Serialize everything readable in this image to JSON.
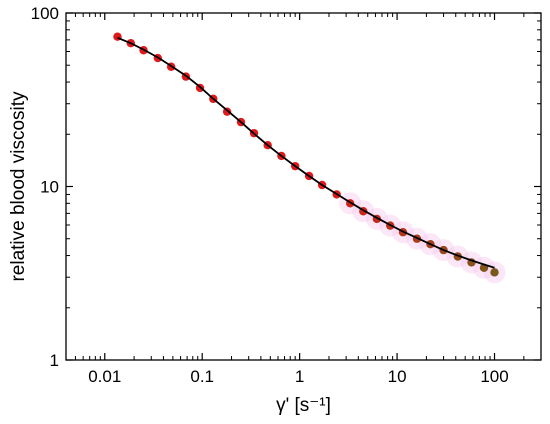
{
  "chart_data": {
    "type": "scatter",
    "title": "",
    "xlabel": "γ' [s⁻¹]",
    "ylabel": "relative blood viscosity",
    "x_scale": "log",
    "y_scale": "log",
    "xlim": [
      0.004,
      300
    ],
    "ylim": [
      1,
      100
    ],
    "x_ticks": [
      {
        "value": 0.01,
        "label": "0.01"
      },
      {
        "value": 0.1,
        "label": "0.1"
      },
      {
        "value": 1,
        "label": "1"
      },
      {
        "value": 10,
        "label": "10"
      },
      {
        "value": 100,
        "label": "100"
      }
    ],
    "y_ticks": [
      {
        "value": 1,
        "label": "1"
      },
      {
        "value": 10,
        "label": "10"
      },
      {
        "value": 100,
        "label": "100"
      }
    ],
    "grid": false,
    "legend": "none",
    "colors": {
      "points_start": "#e01a1a",
      "points_end": "#7a5a1a",
      "fit_line": "#000000",
      "axis": "#000000"
    },
    "series": [
      {
        "type": "scatter",
        "x": [
          0.0135,
          0.0185,
          0.025,
          0.035,
          0.048,
          0.068,
          0.095,
          0.13,
          0.18,
          0.25,
          0.34,
          0.47,
          0.65,
          0.9,
          1.25,
          1.7,
          2.4,
          3.3,
          4.5,
          6.2,
          8.5,
          11.5,
          16,
          22,
          30,
          42,
          58,
          78,
          100
        ],
        "y": [
          73,
          67,
          61,
          55,
          49,
          43,
          37,
          32,
          27,
          23.5,
          20.3,
          17.3,
          15,
          13.1,
          11.5,
          10.2,
          9.0,
          8.0,
          7.2,
          6.5,
          5.95,
          5.45,
          5.0,
          4.65,
          4.3,
          3.95,
          3.65,
          3.4,
          3.2
        ]
      },
      {
        "type": "line",
        "x": [
          0.0135,
          0.0185,
          0.025,
          0.035,
          0.048,
          0.068,
          0.095,
          0.13,
          0.18,
          0.25,
          0.34,
          0.47,
          0.65,
          0.9,
          1.25,
          1.7,
          2.4,
          3.3,
          4.5,
          6.2,
          8.5,
          11.5,
          16,
          22,
          30,
          42,
          58,
          78,
          100
        ],
        "y": [
          72,
          67,
          61.5,
          55.5,
          49.5,
          43.5,
          37.5,
          32,
          27.5,
          23.5,
          20.2,
          17.3,
          15,
          13.1,
          11.5,
          10.2,
          9.05,
          8.1,
          7.3,
          6.6,
          6.0,
          5.5,
          5.05,
          4.65,
          4.3,
          4.0,
          3.75,
          3.55,
          3.4
        ]
      }
    ]
  }
}
